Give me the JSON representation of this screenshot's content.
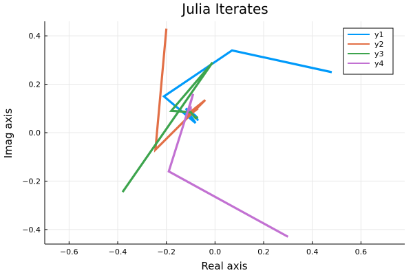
{
  "chart_data": {
    "type": "line",
    "title": "Julia Iterates",
    "xlabel": "Real axis",
    "ylabel": "Imag axis",
    "xlim": [
      -0.7,
      0.78
    ],
    "ylim": [
      -0.46,
      0.46
    ],
    "xticks": [
      -0.6,
      -0.4,
      -0.2,
      0.0,
      0.2,
      0.4,
      0.6
    ],
    "xtick_labels": [
      "−0.6",
      "−0.4",
      "−0.2",
      "0.0",
      "0.2",
      "0.4",
      "0.6"
    ],
    "yticks": [
      -0.4,
      -0.2,
      0.0,
      0.2,
      0.4
    ],
    "ytick_labels": [
      "−0.4",
      "−0.2",
      "0.0",
      "0.2",
      "0.4"
    ],
    "grid": true,
    "legend_position": "top-right",
    "series": [
      {
        "name": "y1",
        "color": "#009AFA",
        "x": [
          0.48,
          0.07,
          -0.21,
          -0.08,
          -0.12,
          -0.08,
          -0.07
        ],
        "y": [
          0.25,
          0.34,
          0.15,
          0.04,
          0.1,
          0.07,
          0.05
        ]
      },
      {
        "name": "y2",
        "color": "#E26F46",
        "x": [
          -0.2,
          -0.245,
          -0.04,
          -0.12,
          -0.07,
          -0.09
        ],
        "y": [
          0.43,
          -0.07,
          0.135,
          0.07,
          0.1,
          0.085
        ]
      },
      {
        "name": "y3",
        "color": "#3DA44D",
        "x": [
          -0.38,
          -0.01,
          -0.18,
          -0.1,
          -0.08,
          -0.07
        ],
        "y": [
          -0.245,
          0.29,
          0.09,
          0.085,
          0.06,
          0.065
        ]
      },
      {
        "name": "y4",
        "color": "#C271D2",
        "x": [
          0.3,
          -0.19,
          -0.09,
          -0.11,
          -0.1,
          -0.1
        ],
        "y": [
          -0.43,
          -0.16,
          0.16,
          0.09,
          0.1,
          0.095
        ]
      }
    ]
  }
}
